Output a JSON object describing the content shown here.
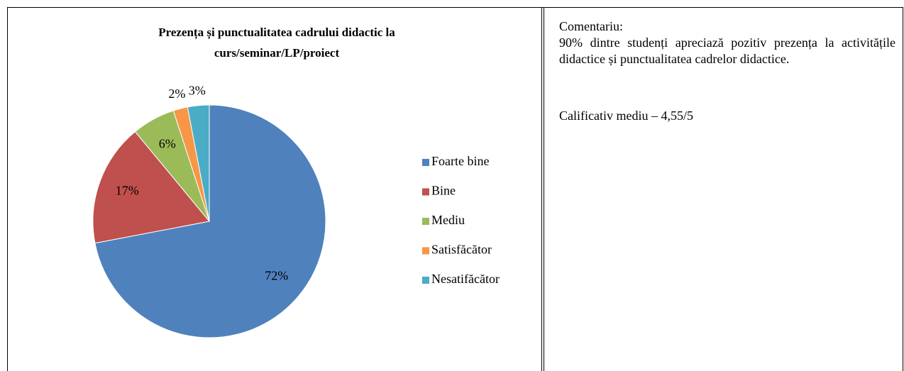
{
  "chart_data": {
    "type": "pie",
    "title": [
      "Prezența și punctualitatea cadrului didactic la",
      "curs/seminar/LP/proiect"
    ],
    "categories": [
      "Foarte bine",
      "Bine",
      "Mediu",
      "Satisfăcător",
      "Nesatifăcător"
    ],
    "values": [
      72,
      17,
      6,
      2,
      3
    ],
    "value_labels": [
      "72%",
      "17%",
      "6%",
      "2%",
      "3%"
    ],
    "colors": [
      "#4f81bd",
      "#c0504d",
      "#9bbb59",
      "#f79646",
      "#4bacc6"
    ],
    "legend": "right"
  },
  "comment": {
    "heading": "Comentariu:",
    "text": "90% dintre studenți apreciază pozitiv prezența la activitățile didactice și punctualitatea cadrelor didactice.",
    "rating": "Calificativ mediu – 4,55/5"
  }
}
